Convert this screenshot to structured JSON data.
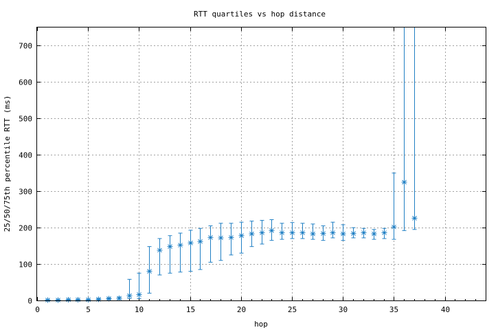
{
  "chart_data": {
    "type": "scatter",
    "title": "RTT quartiles vs hop distance",
    "xlabel": "hop",
    "ylabel": "25/50/75th percentile RTT (ms)",
    "xlim": [
      0,
      44
    ],
    "ylim": [
      0,
      750
    ],
    "xticks": [
      0,
      5,
      10,
      15,
      20,
      25,
      30,
      35,
      40
    ],
    "yticks": [
      0,
      100,
      200,
      300,
      400,
      500,
      600,
      700
    ],
    "grid": true,
    "legend": "none",
    "color": "#1f7fc4",
    "series": [
      {
        "marker": "asterisk",
        "points": [
          {
            "x": 1,
            "q25": 0,
            "median": 1,
            "q75": 2
          },
          {
            "x": 2,
            "q25": 0,
            "median": 1,
            "q75": 2
          },
          {
            "x": 3,
            "q25": 1,
            "median": 2,
            "q75": 3
          },
          {
            "x": 4,
            "q25": 1,
            "median": 2,
            "q75": 3
          },
          {
            "x": 5,
            "q25": 1,
            "median": 2,
            "q75": 3
          },
          {
            "x": 6,
            "q25": 2,
            "median": 3,
            "q75": 5
          },
          {
            "x": 7,
            "q25": 3,
            "median": 5,
            "q75": 7
          },
          {
            "x": 8,
            "q25": 3,
            "median": 6,
            "q75": 9
          },
          {
            "x": 9,
            "q25": 5,
            "median": 13,
            "q75": 58
          },
          {
            "x": 10,
            "q25": 5,
            "median": 16,
            "q75": 75
          },
          {
            "x": 11,
            "q25": 20,
            "median": 80,
            "q75": 148
          },
          {
            "x": 12,
            "q25": 70,
            "median": 138,
            "q75": 170
          },
          {
            "x": 13,
            "q25": 75,
            "median": 148,
            "q75": 178
          },
          {
            "x": 14,
            "q25": 78,
            "median": 152,
            "q75": 185
          },
          {
            "x": 15,
            "q25": 80,
            "median": 158,
            "q75": 193
          },
          {
            "x": 16,
            "q25": 85,
            "median": 162,
            "q75": 198
          },
          {
            "x": 17,
            "q25": 105,
            "median": 173,
            "q75": 205
          },
          {
            "x": 18,
            "q25": 110,
            "median": 172,
            "q75": 212
          },
          {
            "x": 19,
            "q25": 125,
            "median": 173,
            "q75": 212
          },
          {
            "x": 20,
            "q25": 130,
            "median": 178,
            "q75": 215
          },
          {
            "x": 21,
            "q25": 148,
            "median": 183,
            "q75": 218
          },
          {
            "x": 22,
            "q25": 155,
            "median": 186,
            "q75": 220
          },
          {
            "x": 23,
            "q25": 165,
            "median": 192,
            "q75": 222
          },
          {
            "x": 24,
            "q25": 168,
            "median": 186,
            "q75": 212
          },
          {
            "x": 25,
            "q25": 170,
            "median": 186,
            "q75": 214
          },
          {
            "x": 26,
            "q25": 170,
            "median": 186,
            "q75": 212
          },
          {
            "x": 27,
            "q25": 168,
            "median": 183,
            "q75": 210
          },
          {
            "x": 28,
            "q25": 165,
            "median": 184,
            "q75": 205
          },
          {
            "x": 29,
            "q25": 172,
            "median": 186,
            "q75": 215
          },
          {
            "x": 30,
            "q25": 165,
            "median": 183,
            "q75": 208
          },
          {
            "x": 31,
            "q25": 172,
            "median": 184,
            "q75": 200
          },
          {
            "x": 32,
            "q25": 172,
            "median": 186,
            "q75": 198
          },
          {
            "x": 33,
            "q25": 168,
            "median": 183,
            "q75": 195
          },
          {
            "x": 34,
            "q25": 170,
            "median": 186,
            "q75": 198
          },
          {
            "x": 35,
            "q25": 168,
            "median": 202,
            "q75": 350
          },
          {
            "x": 36,
            "q25": 192,
            "median": 325,
            "q75": 750
          },
          {
            "x": 37,
            "q25": 195,
            "median": 226,
            "q75": 750
          }
        ]
      }
    ]
  }
}
